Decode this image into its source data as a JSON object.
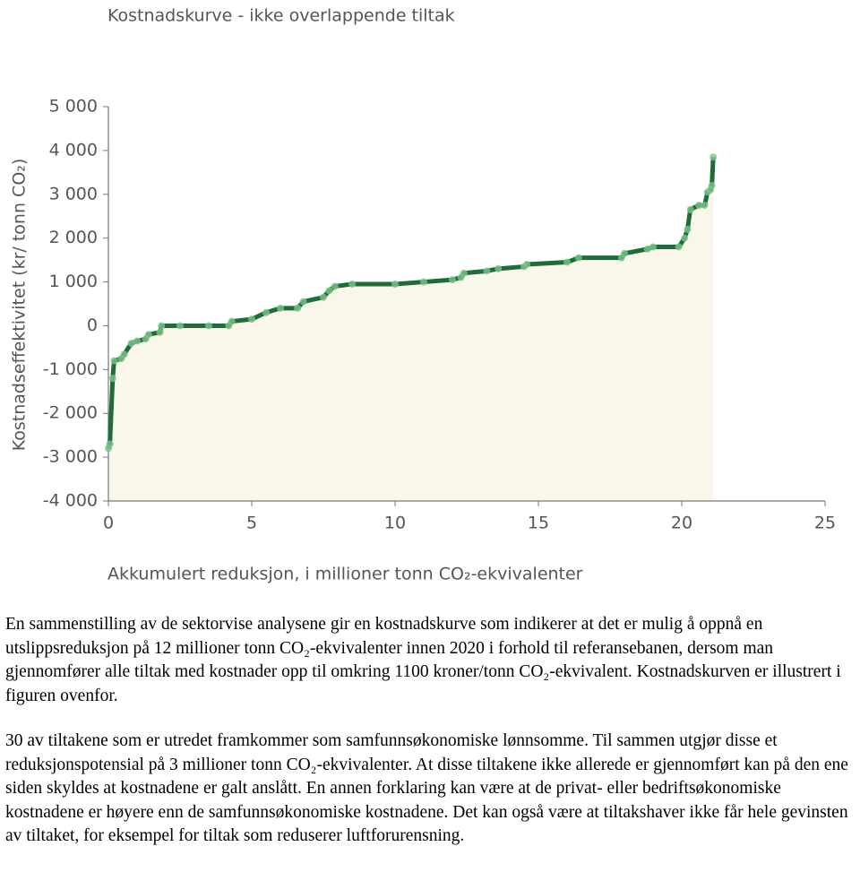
{
  "chart_data": {
    "type": "line",
    "title": "Kostnadskurve - ikke overlappende tiltak",
    "x_label": "Akkumulert reduksjon, i millioner  tonn CO₂-ekvivalenter",
    "y_label": "Kostnadseffektivitet  (kr/ tonn CO₂)",
    "x": [
      0,
      0.05,
      0.15,
      0.2,
      0.45,
      0.55,
      0.8,
      1.0,
      1.3,
      1.4,
      1.8,
      1.85,
      2.5,
      3.5,
      4.2,
      4.3,
      5.0,
      5.5,
      6.0,
      6.6,
      6.8,
      7.5,
      7.7,
      7.9,
      8.5,
      10,
      11,
      12,
      12.3,
      12.4,
      13.2,
      13.6,
      14.5,
      14.6,
      16,
      16.4,
      17.9,
      18,
      18.8,
      19,
      19.9,
      20.1,
      20.2,
      20.3,
      20.6,
      20.8,
      20.9,
      21.0,
      21.05,
      21.1
    ],
    "series": [
      {
        "name": "Kostnadskurve",
        "color": "#1f6b3b",
        "marker_color": "#7cc48a",
        "values": [
          -2800,
          -2700,
          -1200,
          -800,
          -750,
          -650,
          -400,
          -350,
          -300,
          -200,
          -150,
          0,
          0,
          0,
          0,
          100,
          150,
          300,
          400,
          400,
          550,
          650,
          800,
          900,
          950,
          950,
          1000,
          1050,
          1100,
          1200,
          1250,
          1300,
          1350,
          1400,
          1450,
          1550,
          1550,
          1650,
          1750,
          1800,
          1800,
          2000,
          2200,
          2650,
          2750,
          2750,
          3050,
          3100,
          3200,
          3850
        ]
      }
    ],
    "fill_color": "#f8f7e9",
    "xlim": [
      0,
      25
    ],
    "xticks": [
      0,
      5,
      10,
      15,
      20,
      25
    ],
    "ylim": [
      -4000,
      5000
    ],
    "yticks": [
      {
        "value": -4000,
        "label": "-4 000"
      },
      {
        "value": -3000,
        "label": "-3 000"
      },
      {
        "value": -2000,
        "label": "-2 000"
      },
      {
        "value": -1000,
        "label": "-1 000"
      },
      0,
      {
        "value": 1000,
        "label": "1 000"
      },
      {
        "value": 2000,
        "label": "2 000"
      },
      {
        "value": 3000,
        "label": "3 000"
      },
      {
        "value": 4000,
        "label": "4 000"
      },
      {
        "value": 5000,
        "label": "5 000"
      }
    ]
  },
  "text": {
    "paragraphs": [
      "En sammenstilling av de sektorvise analysene gir en kostnadskurve som indikerer at det er mulig å oppnå en utslippsreduksjon på 12 millioner tonn CO₂-ekvivalenter innen 2020 i forhold til referansebanen, dersom man gjennomfører alle tiltak med kostnader opp til omkring 1100 kroner/tonn CO₂-ekvivalent. Kostnadskurven er illustrert i figuren ovenfor.",
      "30 av tiltakene som er utredet framkommer som samfunnsøkonomiske lønnsomme. Til sammen utgjør disse et reduksjonspotensial på 3 millioner tonn CO₂-ekvivalenter. At disse tiltakene ikke allerede er gjennomført kan på den ene siden skyldes at kostnadene er galt anslått. En annen forklaring kan være at de privat- eller bedriftsøkonomiske kostnadene er høyere enn de samfunnsøkonomiske kostnadene. Det kan også være at tiltakshaver ikke får hele gevinsten av tiltaket, for eksempel for tiltak som reduserer luftforurensning."
    ]
  }
}
